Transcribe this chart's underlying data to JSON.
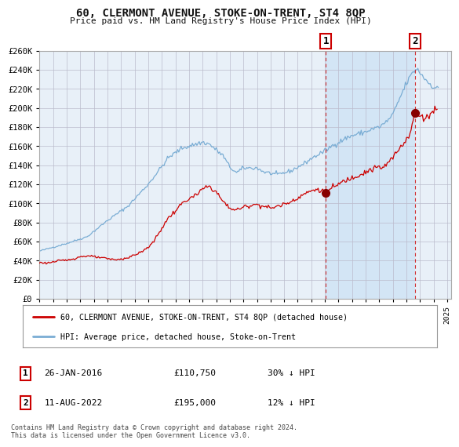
{
  "title": "60, CLERMONT AVENUE, STOKE-ON-TRENT, ST4 8QP",
  "subtitle": "Price paid vs. HM Land Registry's House Price Index (HPI)",
  "ylim": [
    0,
    260000
  ],
  "yticks": [
    0,
    20000,
    40000,
    60000,
    80000,
    100000,
    120000,
    140000,
    160000,
    180000,
    200000,
    220000,
    240000,
    260000
  ],
  "xlim_start": 1995.0,
  "xlim_end": 2025.3,
  "background_color": "#ffffff",
  "plot_bg_color": "#e8f0f8",
  "grid_color": "#bbbbcc",
  "hpi_color": "#7aadd4",
  "price_color": "#cc0000",
  "shade_color": "#d0e4f5",
  "marker1_date": 2016.07,
  "marker1_price": 110750,
  "marker2_date": 2022.61,
  "marker2_price": 195000,
  "legend_line1": "60, CLERMONT AVENUE, STOKE-ON-TRENT, ST4 8QP (detached house)",
  "legend_line2": "HPI: Average price, detached house, Stoke-on-Trent",
  "footer": "Contains HM Land Registry data © Crown copyright and database right 2024.\nThis data is licensed under the Open Government Licence v3.0.",
  "ann1_date": "26-JAN-2016",
  "ann1_price": "£110,750",
  "ann1_hpi": "30% ↓ HPI",
  "ann2_date": "11-AUG-2022",
  "ann2_price": "£195,000",
  "ann2_hpi": "12% ↓ HPI"
}
